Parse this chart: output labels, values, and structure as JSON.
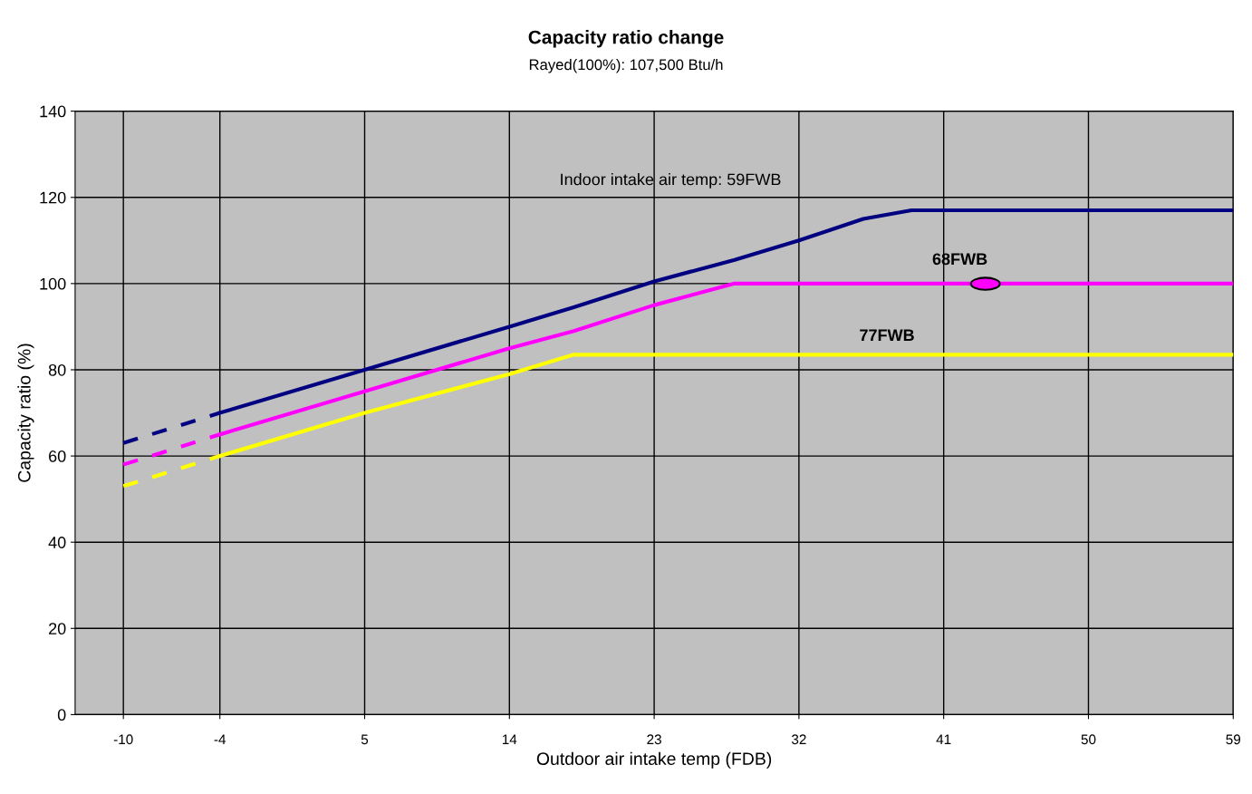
{
  "chart_data": {
    "type": "line",
    "title": "Capacity ratio change",
    "subtitle": "Rayed(100%): 107,500 Btu/h",
    "xlabel": "Outdoor air intake temp (FDB)",
    "ylabel": "Capacity ratio (%)",
    "xlim": [
      -13,
      59
    ],
    "xticks": [
      -10,
      -4,
      5,
      14,
      23,
      32,
      41,
      50,
      59
    ],
    "ylim": [
      0,
      140
    ],
    "yticks": [
      0,
      20,
      40,
      60,
      80,
      100,
      120,
      140
    ],
    "grid": true,
    "marker": "none",
    "series": [
      {
        "color": "#000080",
        "line_style": "dashed",
        "x": [
          -10,
          -4
        ],
        "values": [
          63,
          70
        ]
      },
      {
        "color": "#000080",
        "line_style": "solid",
        "x": [
          -4,
          5,
          14,
          18,
          23,
          28,
          32,
          36,
          39,
          59
        ],
        "values": [
          70,
          80,
          90,
          94.5,
          100.5,
          105.5,
          110,
          115,
          117,
          117
        ]
      },
      {
        "color": "#ff00ff",
        "line_style": "dashed",
        "x": [
          -10,
          -4
        ],
        "values": [
          58,
          65
        ]
      },
      {
        "color": "#ff00ff",
        "line_style": "solid",
        "x": [
          -4,
          5,
          14,
          18,
          23,
          28,
          59
        ],
        "values": [
          65,
          75,
          85,
          89,
          95,
          100,
          100
        ]
      },
      {
        "color": "#ffff00",
        "line_style": "dashed",
        "x": [
          -10,
          -4
        ],
        "values": [
          53,
          60
        ]
      },
      {
        "color": "#ffff00",
        "line_style": "solid",
        "x": [
          -4,
          5,
          14,
          18,
          59
        ],
        "values": [
          60,
          70,
          79,
          83.5,
          83.5
        ]
      }
    ],
    "annotations": [
      "Indoor intake air temp: 59FWB",
      "68FWB",
      "77FWB"
    ]
  }
}
